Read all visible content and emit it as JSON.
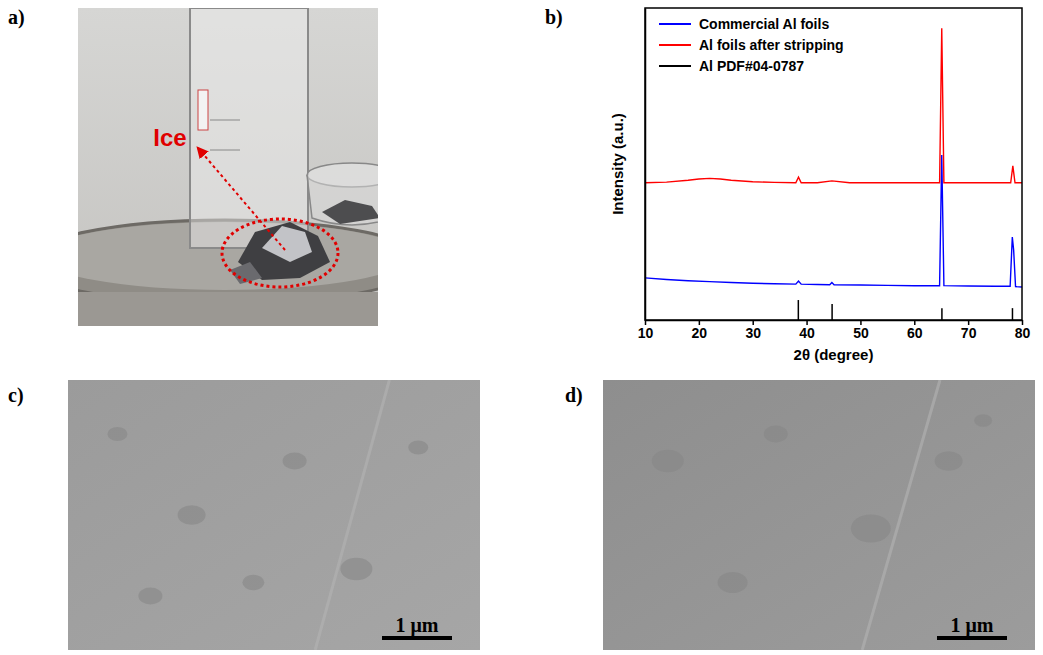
{
  "panels": [
    {
      "label": "a)"
    },
    {
      "label": "b)"
    },
    {
      "label": "c)"
    },
    {
      "label": "d)"
    }
  ],
  "photo": {
    "annotation": "Ice"
  },
  "sem": [
    {
      "scale_bar": "1 μm"
    },
    {
      "scale_bar": "1 μm"
    }
  ],
  "chart_data": {
    "type": "line",
    "xlabel": "2θ (degree)",
    "ylabel": "Intensity (a.u.)",
    "xlim": [
      10,
      80
    ],
    "xticks": [
      10,
      20,
      30,
      40,
      50,
      60,
      70,
      80
    ],
    "ylim": [
      0,
      100
    ],
    "tick_labels": "x",
    "legend": "upper left",
    "series": [
      {
        "name": "Commercial Al foils",
        "color": "#0000ff",
        "x": [
          10,
          14,
          18,
          22,
          26,
          30,
          34,
          38,
          38.5,
          39,
          42,
          44.3,
          44.7,
          45.1,
          50,
          55,
          60,
          64.7,
          65.1,
          65.5,
          70,
          75,
          77.8,
          78.2,
          78.45,
          78.8,
          80
        ],
        "values": [
          13.5,
          13.0,
          12.6,
          12.3,
          12.0,
          11.8,
          11.6,
          11.5,
          12.5,
          11.5,
          11.4,
          11.3,
          12.0,
          11.3,
          11.2,
          11.1,
          11.0,
          11.0,
          52.9,
          11.0,
          10.9,
          10.8,
          10.8,
          26.6,
          22.4,
          10.7,
          10.6
        ]
      },
      {
        "name": "Al foils after stripping",
        "color": "#ff0000",
        "x": [
          10,
          14,
          18,
          20,
          22,
          24,
          26,
          30,
          34,
          38,
          38.5,
          39,
          42,
          44.7,
          48,
          55,
          60,
          64.7,
          65.1,
          65.5,
          70,
          75,
          77.9,
          78.3,
          78.7,
          80
        ],
        "values": [
          44,
          44.2,
          44.8,
          45.2,
          45.4,
          45.2,
          44.8,
          44.3,
          44.1,
          44,
          45.8,
          44,
          44,
          44.6,
          44,
          44,
          44,
          44,
          93.5,
          44,
          44,
          44,
          44,
          49.4,
          44,
          44
        ]
      },
      {
        "name": "Al PDF#04-0787",
        "color": "#000000",
        "type": "stick",
        "x": [
          38.47,
          44.74,
          65.13,
          78.23
        ],
        "values": [
          6.4,
          5.1,
          3.8,
          3.8
        ]
      }
    ]
  }
}
